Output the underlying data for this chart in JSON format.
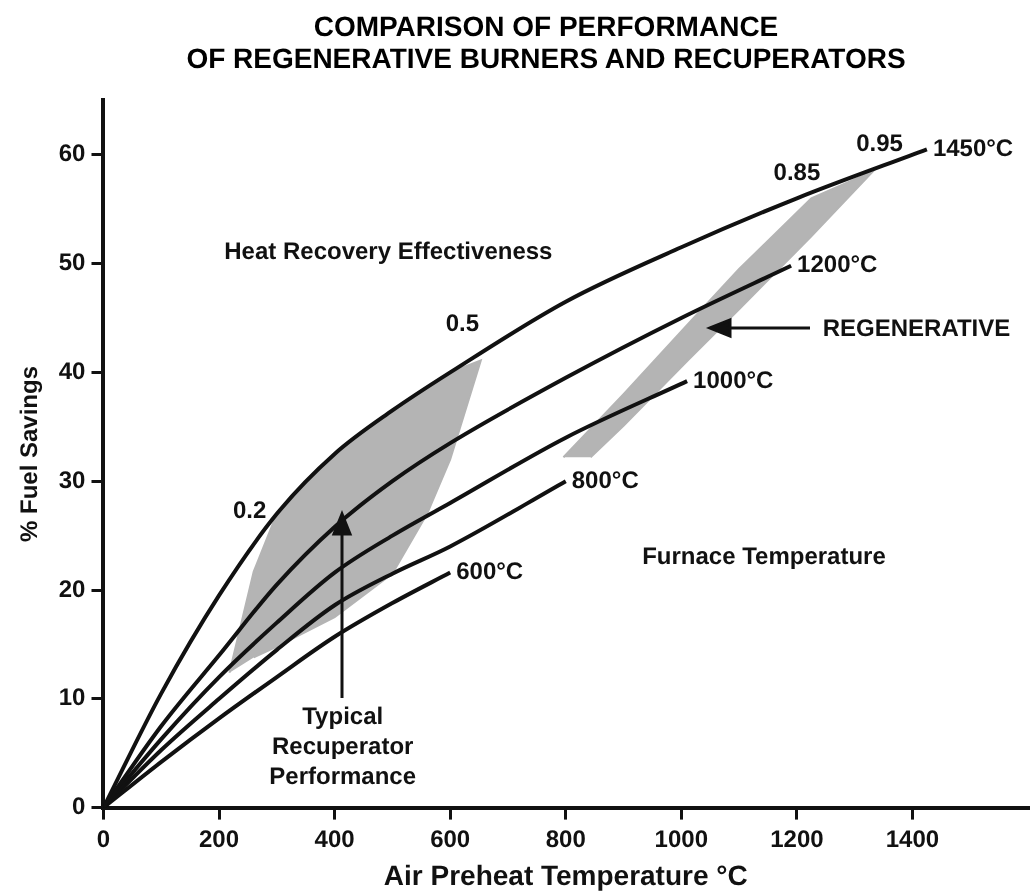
{
  "chart_data": {
    "type": "line",
    "title": "COMPARISON OF PERFORMANCE\nOF REGENERATIVE BURNERS AND RECUPERATORS",
    "xlabel": "Air Preheat Temperature °C",
    "ylabel": "% Fuel Savings",
    "xlim": [
      0,
      1600
    ],
    "xticks": [
      0,
      200,
      400,
      600,
      800,
      1000,
      1200,
      1400
    ],
    "ylim": [
      0,
      65
    ],
    "yticks": [
      0,
      10,
      20,
      30,
      40,
      50,
      60
    ],
    "legend": false,
    "marker": "none",
    "line_style": "solid",
    "series": [
      {
        "type": "area",
        "color": "#b4b4b4",
        "x": [
          218,
          260,
          300,
          400,
          500,
          560,
          600,
          653,
          600,
          560,
          500,
          400,
          300,
          260
        ],
        "values": [
          12.4,
          21.7,
          27,
          32.5,
          36.5,
          38.5,
          40,
          41.1,
          32,
          27,
          21.5,
          17.5,
          14.8,
          13.8
        ]
      },
      {
        "type": "area",
        "color": "#b4b4b4",
        "x": [
          796,
          900,
          1011,
          1100,
          1225,
          1332,
          1225,
          1100,
          1011,
          900,
          843
        ],
        "values": [
          32.2,
          38,
          44.4,
          49.5,
          56,
          58.5,
          52.5,
          45.8,
          41.1,
          35.1,
          32.2
        ]
      },
      {
        "name": "1450°C",
        "color": "#111111",
        "x": [
          0,
          100,
          200,
          300,
          400,
          500,
          600,
          800,
          1000,
          1200,
          1425
        ],
        "values": [
          0,
          10.5,
          19.5,
          27,
          32.5,
          36.5,
          40,
          46.5,
          51.5,
          56,
          60.5
        ]
      },
      {
        "name": "1200°C",
        "color": "#111111",
        "x": [
          0,
          100,
          200,
          300,
          400,
          500,
          600,
          800,
          1000,
          1190
        ],
        "values": [
          0,
          7.5,
          14,
          20.5,
          25.8,
          30,
          33.5,
          39.5,
          45,
          49.8
        ]
      },
      {
        "name": "1000°C",
        "color": "#111111",
        "x": [
          0,
          100,
          200,
          300,
          400,
          500,
          600,
          800,
          1010
        ],
        "values": [
          0,
          6.3,
          12,
          17,
          21.6,
          25,
          28,
          34,
          39.2
        ]
      },
      {
        "name": "800°C",
        "color": "#111111",
        "x": [
          0,
          100,
          200,
          300,
          400,
          500,
          600,
          800
        ],
        "values": [
          0,
          5.3,
          10,
          14.5,
          18.6,
          21.5,
          24,
          30
        ]
      },
      {
        "name": "600°C",
        "color": "#111111",
        "x": [
          0,
          100,
          200,
          300,
          400,
          500,
          600
        ],
        "values": [
          0,
          4.2,
          8.2,
          12,
          15.7,
          18.8,
          21.6
        ]
      }
    ],
    "annotations": [
      "Heat Recovery Effectiveness",
      "0.2",
      "0.5",
      "0.85",
      "0.95",
      "Furnace Temperature",
      "REGENERATIVE",
      {
        "text": "Typical\nRecuperator\nPerformance",
        "x": 414,
        "y": 27
      }
    ]
  }
}
